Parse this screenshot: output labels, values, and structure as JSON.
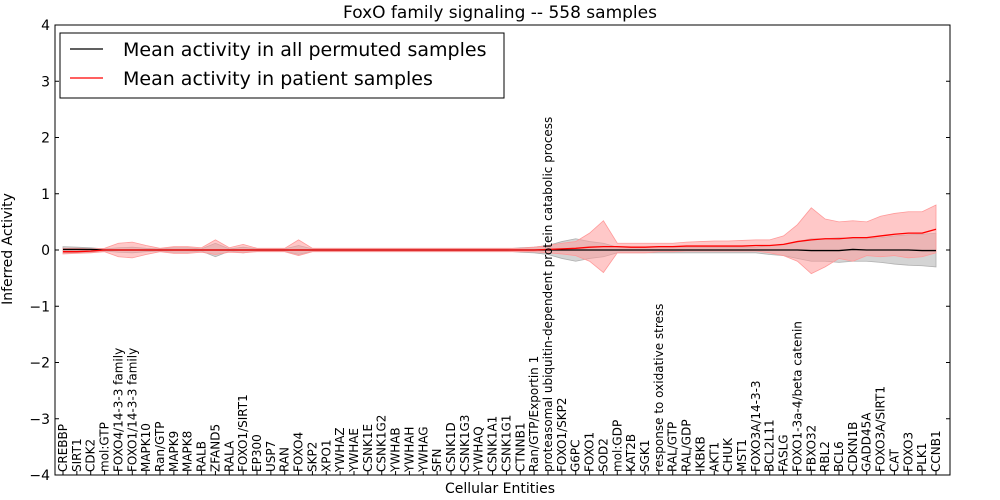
{
  "chart_data": {
    "type": "line",
    "title": "FoxO family signaling -- 558 samples",
    "xlabel": "Cellular Entities",
    "ylabel": "Inferred Activity",
    "ylim": [
      -4,
      4
    ],
    "yticks": [
      -4,
      -3,
      -2,
      -1,
      0,
      1,
      2,
      3,
      4
    ],
    "ytick_labels": [
      "−4",
      "−3",
      "−2",
      "−1",
      "0",
      "1",
      "2",
      "3",
      "4"
    ],
    "grid": false,
    "legend_position": "top-left",
    "categories": [
      "CREBBP",
      "SIRT1",
      "CDK2",
      "mol:GTP",
      "FOXO4/14-3-3 family",
      "FOXO1/14-3-3 family",
      "MAPK10",
      "Ran/GTP",
      "MAPK9",
      "MAPK8",
      "RALB",
      "ZFAND5",
      "RALA",
      "FOXO1/SIRT1",
      "EP300",
      "USP7",
      "RAN",
      "FOXO4",
      "SKP2",
      "XPO1",
      "YWHAZ",
      "YWHAE",
      "CSNK1E",
      "CSNK1G2",
      "YWHAB",
      "YWHAH",
      "YWHAG",
      "SFN",
      "CSNK1D",
      "CSNK1G3",
      "YWHAQ",
      "CSNK1A1",
      "CSNK1G1",
      "CTNNB1",
      "Ran/GTP/Exportin 1",
      "proteasomal ubiquitin-dependent protein catabolic process",
      "FOXO1/SKP2",
      "G6PC",
      "FOXO1",
      "SOD2",
      "mol:GDP",
      "KAT2B",
      "SGK1",
      "response to oxidative stress",
      "RAL/GTP",
      "RAL/GDP",
      "IKBKB",
      "AKT1",
      "CHUK",
      "MST1",
      "FOXO3A/14-3-3",
      "BCL2L11",
      "FASLG",
      "FOXO1-3a-4/beta catenin",
      "FBXO32",
      "RBL2",
      "BCL6",
      "CDKN1B",
      "GADD45A",
      "FOXO3A/SIRT1",
      "CAT",
      "FOXO3",
      "PLK1",
      "CCNB1"
    ],
    "series": [
      {
        "name": "Mean activity in all permuted samples",
        "color": "#000000",
        "fill": "#b0b0b0",
        "values": [
          0.01,
          0.01,
          0.01,
          0.0,
          0.0,
          0.0,
          0.0,
          0.0,
          0.0,
          0.0,
          0.0,
          0.0,
          0.0,
          0.0,
          0.0,
          0.0,
          0.0,
          0.0,
          0.0,
          0.0,
          0.0,
          0.0,
          0.0,
          0.0,
          0.0,
          0.0,
          0.0,
          0.0,
          0.0,
          0.0,
          0.0,
          0.0,
          0.0,
          0.0,
          0.0,
          0.0,
          0.0,
          0.0,
          0.0,
          0.0,
          0.0,
          0.0,
          0.0,
          0.0,
          0.0,
          0.0,
          0.0,
          0.0,
          0.0,
          0.0,
          0.0,
          0.0,
          0.0,
          0.0,
          -0.01,
          -0.01,
          -0.01,
          0.01,
          0.0,
          0.0,
          0.0,
          0.0,
          -0.01,
          -0.01
        ],
        "lower": [
          -0.05,
          -0.05,
          -0.04,
          -0.02,
          -0.04,
          -0.05,
          -0.03,
          -0.02,
          -0.04,
          -0.04,
          -0.02,
          -0.12,
          -0.02,
          -0.05,
          -0.02,
          -0.02,
          -0.02,
          -0.08,
          -0.02,
          -0.02,
          -0.02,
          -0.02,
          -0.02,
          -0.02,
          -0.02,
          -0.02,
          -0.02,
          -0.02,
          -0.02,
          -0.02,
          -0.02,
          -0.02,
          -0.02,
          -0.04,
          -0.05,
          -0.08,
          -0.15,
          -0.2,
          -0.15,
          -0.12,
          -0.05,
          -0.05,
          -0.05,
          -0.05,
          -0.05,
          -0.05,
          -0.05,
          -0.05,
          -0.05,
          -0.05,
          -0.05,
          -0.08,
          -0.1,
          -0.15,
          -0.2,
          -0.2,
          -0.22,
          -0.2,
          -0.2,
          -0.22,
          -0.25,
          -0.27,
          -0.28,
          -0.3
        ],
        "upper": [
          0.06,
          0.05,
          0.04,
          0.02,
          0.04,
          0.05,
          0.03,
          0.02,
          0.04,
          0.04,
          0.02,
          0.12,
          0.02,
          0.05,
          0.02,
          0.02,
          0.02,
          0.08,
          0.02,
          0.02,
          0.02,
          0.02,
          0.02,
          0.02,
          0.02,
          0.02,
          0.02,
          0.02,
          0.02,
          0.02,
          0.02,
          0.02,
          0.02,
          0.04,
          0.05,
          0.08,
          0.15,
          0.2,
          0.15,
          0.12,
          0.05,
          0.05,
          0.05,
          0.05,
          0.05,
          0.05,
          0.05,
          0.05,
          0.05,
          0.05,
          0.05,
          0.08,
          0.1,
          0.15,
          0.2,
          0.2,
          0.22,
          0.2,
          0.2,
          0.22,
          0.25,
          0.27,
          0.28,
          0.3
        ]
      },
      {
        "name": "Mean activity in patient samples",
        "color": "#ff0000",
        "fill": "#ff9a9a",
        "values": [
          -0.03,
          -0.03,
          -0.02,
          0.0,
          0.0,
          0.0,
          0.0,
          0.0,
          0.0,
          0.0,
          0.0,
          0.0,
          0.0,
          0.0,
          0.0,
          0.0,
          0.0,
          0.0,
          0.0,
          0.0,
          0.0,
          0.0,
          0.0,
          0.0,
          0.0,
          0.0,
          0.0,
          0.0,
          0.0,
          0.0,
          0.0,
          0.0,
          0.0,
          0.0,
          0.0,
          0.01,
          0.02,
          0.03,
          0.05,
          0.06,
          0.06,
          0.05,
          0.05,
          0.06,
          0.06,
          0.07,
          0.07,
          0.07,
          0.07,
          0.07,
          0.08,
          0.08,
          0.1,
          0.15,
          0.18,
          0.2,
          0.2,
          0.22,
          0.22,
          0.25,
          0.28,
          0.3,
          0.3,
          0.37
        ],
        "lower": [
          -0.07,
          -0.06,
          -0.05,
          -0.03,
          -0.12,
          -0.14,
          -0.08,
          -0.03,
          -0.06,
          -0.06,
          -0.04,
          -0.08,
          -0.04,
          -0.05,
          -0.03,
          -0.03,
          -0.03,
          -0.1,
          -0.03,
          -0.03,
          -0.03,
          -0.03,
          -0.03,
          -0.03,
          -0.03,
          -0.03,
          -0.03,
          -0.03,
          -0.03,
          -0.03,
          -0.03,
          -0.03,
          -0.03,
          -0.03,
          -0.03,
          -0.05,
          -0.07,
          -0.1,
          -0.2,
          -0.4,
          -0.05,
          -0.05,
          -0.05,
          -0.03,
          -0.03,
          -0.02,
          -0.02,
          -0.02,
          -0.02,
          -0.02,
          -0.02,
          -0.05,
          -0.1,
          -0.2,
          -0.42,
          -0.3,
          -0.15,
          -0.2,
          -0.1,
          -0.12,
          -0.1,
          -0.14,
          -0.12,
          -0.05
        ],
        "upper": [
          0.03,
          0.03,
          0.02,
          0.03,
          0.12,
          0.14,
          0.08,
          0.03,
          0.06,
          0.06,
          0.04,
          0.18,
          0.04,
          0.1,
          0.03,
          0.03,
          0.03,
          0.18,
          0.03,
          0.03,
          0.03,
          0.03,
          0.03,
          0.03,
          0.03,
          0.03,
          0.03,
          0.03,
          0.03,
          0.03,
          0.03,
          0.03,
          0.03,
          0.03,
          0.05,
          0.08,
          0.12,
          0.15,
          0.3,
          0.52,
          0.12,
          0.12,
          0.12,
          0.12,
          0.12,
          0.14,
          0.15,
          0.16,
          0.16,
          0.17,
          0.18,
          0.18,
          0.25,
          0.45,
          0.75,
          0.55,
          0.5,
          0.52,
          0.5,
          0.6,
          0.65,
          0.68,
          0.68,
          0.8
        ]
      }
    ]
  }
}
